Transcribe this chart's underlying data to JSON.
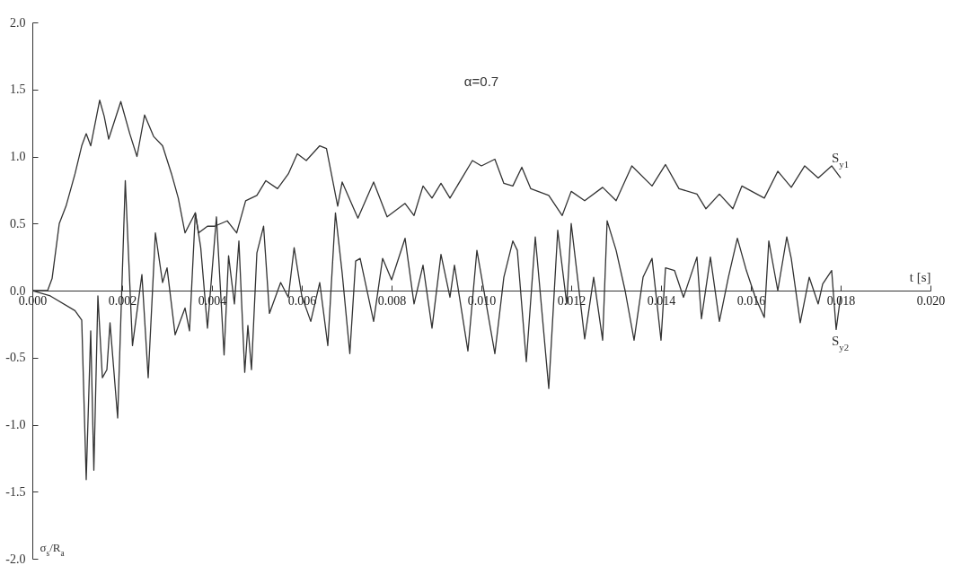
{
  "chart_data": {
    "type": "line",
    "xlabel": "t [s]",
    "ylabel": "σ$_{s}$/R$_{a}$",
    "annotations": [
      "α=0.7"
    ],
    "xlim": [
      0,
      0.02
    ],
    "ylim": [
      -2,
      2
    ],
    "xticks": [
      {
        "value": 0,
        "label": "0.000"
      },
      {
        "value": 0.002,
        "label": "0.002"
      },
      {
        "value": 0.004,
        "label": "0.004"
      },
      {
        "value": 0.006,
        "label": "0.006"
      },
      {
        "value": 0.008,
        "label": "0.008"
      },
      {
        "value": 0.01,
        "label": "0.010"
      },
      {
        "value": 0.012,
        "label": "0.012"
      },
      {
        "value": 0.014,
        "label": "0.014"
      },
      {
        "value": 0.016,
        "label": "0.016"
      },
      {
        "value": 0.018,
        "label": "0.018"
      },
      {
        "value": 0.02,
        "label": "0.020"
      }
    ],
    "yticks": [
      {
        "value": -2,
        "label": "-2.0"
      },
      {
        "value": -1.5,
        "label": "-1.5"
      },
      {
        "value": -1,
        "label": "-1.0"
      },
      {
        "value": -0.5,
        "label": "-0.5"
      },
      {
        "value": 0,
        "label": "0.0"
      },
      {
        "value": 0.5,
        "label": "0.5"
      },
      {
        "value": 1,
        "label": "1.0"
      },
      {
        "value": 1.5,
        "label": "1.5"
      },
      {
        "value": 2,
        "label": "2.0"
      }
    ],
    "grid": false,
    "series": [
      {
        "name": "S$_{y1}$",
        "color": "#333333",
        "x": [
          0,
          0.00034,
          0.00044,
          0.0006,
          0.00075,
          0.00095,
          0.0011,
          0.0012,
          0.0013,
          0.0015,
          0.0016,
          0.0017,
          0.00197,
          0.00217,
          0.00233,
          0.0025,
          0.0027,
          0.0029,
          0.0031,
          0.00325,
          0.0034,
          0.00363,
          0.0037,
          0.0039,
          0.00406,
          0.00434,
          0.00455,
          0.00475,
          0.005,
          0.0052,
          0.00546,
          0.0057,
          0.0059,
          0.0061,
          0.0064,
          0.00655,
          0.0068,
          0.0069,
          0.00725,
          0.0076,
          0.0079,
          0.0083,
          0.0085,
          0.0087,
          0.0089,
          0.0091,
          0.0093,
          0.0098,
          0.01,
          0.0103,
          0.0105,
          0.0107,
          0.0109,
          0.0111,
          0.0115,
          0.0118,
          0.012,
          0.0123,
          0.0127,
          0.013,
          0.01335,
          0.0138,
          0.0141,
          0.0144,
          0.0148,
          0.015,
          0.0153,
          0.0156,
          0.0158,
          0.0163,
          0.0166,
          0.0169,
          0.0172,
          0.0175,
          0.0178,
          0.018
        ],
        "values": [
          0,
          0,
          0.09,
          0.5,
          0.63,
          0.87,
          1.08,
          1.17,
          1.08,
          1.42,
          1.3,
          1.13,
          1.41,
          1.17,
          1.0,
          1.31,
          1.15,
          1.08,
          0.87,
          0.69,
          0.43,
          0.58,
          0.43,
          0.48,
          0.48,
          0.52,
          0.43,
          0.67,
          0.71,
          0.82,
          0.76,
          0.87,
          1.02,
          0.97,
          1.08,
          1.06,
          0.63,
          0.81,
          0.54,
          0.81,
          0.55,
          0.65,
          0.56,
          0.78,
          0.69,
          0.8,
          0.69,
          0.97,
          0.93,
          0.98,
          0.8,
          0.78,
          0.92,
          0.76,
          0.71,
          0.56,
          0.74,
          0.67,
          0.77,
          0.67,
          0.93,
          0.78,
          0.94,
          0.76,
          0.72,
          0.61,
          0.72,
          0.61,
          0.78,
          0.69,
          0.89,
          0.77,
          0.93,
          0.84,
          0.93,
          0.84
        ]
      },
      {
        "name": "S$_{y2}$",
        "color": "#333333",
        "x": [
          0,
          0.0004,
          0.00095,
          0.0011,
          0.0012,
          0.0013,
          0.00137,
          0.00146,
          0.00156,
          0.00166,
          0.00173,
          0.0019,
          0.00207,
          0.00223,
          0.00244,
          0.00258,
          0.00274,
          0.0029,
          0.003,
          0.00318,
          0.0034,
          0.0035,
          0.00363,
          0.00375,
          0.0039,
          0.0041,
          0.00427,
          0.00437,
          0.0045,
          0.0046,
          0.00473,
          0.0048,
          0.00488,
          0.005,
          0.00515,
          0.00528,
          0.00553,
          0.0057,
          0.00583,
          0.006,
          0.0062,
          0.0064,
          0.00658,
          0.00675,
          0.0069,
          0.00707,
          0.0072,
          0.0073,
          0.0076,
          0.0078,
          0.008,
          0.0083,
          0.0085,
          0.0087,
          0.0089,
          0.0091,
          0.0093,
          0.0094,
          0.0097,
          0.0099,
          0.0103,
          0.0105,
          0.0107,
          0.0108,
          0.011,
          0.0112,
          0.0115,
          0.0117,
          0.0119,
          0.012,
          0.0123,
          0.0125,
          0.0127,
          0.0128,
          0.013,
          0.0132,
          0.0134,
          0.0136,
          0.0138,
          0.014,
          0.0141,
          0.0143,
          0.0145,
          0.0148,
          0.0149,
          0.0151,
          0.0153,
          0.0155,
          0.0157,
          0.0159,
          0.0161,
          0.0163,
          0.0164,
          0.0166,
          0.0168,
          0.0169,
          0.0171,
          0.0173,
          0.0175,
          0.0176,
          0.0178,
          0.0179,
          0.018
        ],
        "values": [
          0,
          -0.04,
          -0.15,
          -0.22,
          -1.41,
          -0.3,
          -1.34,
          -0.04,
          -0.65,
          -0.59,
          -0.24,
          -0.95,
          0.82,
          -0.41,
          0.12,
          -0.65,
          0.43,
          0.06,
          0.17,
          -0.33,
          -0.13,
          -0.3,
          0.58,
          0.32,
          -0.28,
          0.55,
          -0.48,
          0.26,
          -0.1,
          0.37,
          -0.61,
          -0.26,
          -0.59,
          0.28,
          0.48,
          -0.17,
          0.06,
          -0.05,
          0.32,
          -0.04,
          -0.23,
          0.06,
          -0.41,
          0.58,
          0.13,
          -0.47,
          0.22,
          0.24,
          -0.23,
          0.24,
          0.08,
          0.39,
          -0.1,
          0.19,
          -0.28,
          0.27,
          -0.05,
          0.19,
          -0.45,
          0.3,
          -0.47,
          0.1,
          0.37,
          0.3,
          -0.53,
          0.4,
          -0.73,
          0.45,
          -0.1,
          0.5,
          -0.36,
          0.1,
          -0.37,
          0.52,
          0.3,
          0,
          -0.37,
          0.1,
          0.24,
          -0.37,
          0.17,
          0.15,
          -0.05,
          0.25,
          -0.21,
          0.25,
          -0.23,
          0.1,
          0.39,
          0.15,
          -0.05,
          -0.2,
          0.37,
          0,
          0.4,
          0.24,
          -0.24,
          0.1,
          -0.1,
          0.05,
          0.15,
          -0.29,
          -0.04
        ]
      }
    ]
  }
}
